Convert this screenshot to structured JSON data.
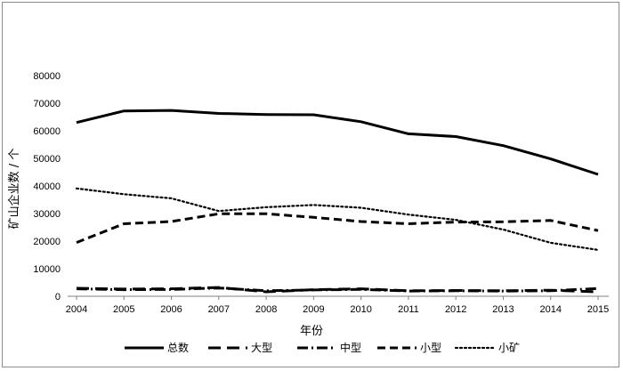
{
  "chart_data": {
    "type": "line",
    "title": "",
    "xlabel": "年份",
    "ylabel": "矿山企业数 / 个",
    "categories": [
      "2004",
      "2005",
      "2006",
      "2007",
      "2008",
      "2009",
      "2010",
      "2011",
      "2012",
      "2013",
      "2014",
      "2015"
    ],
    "y_ticks": [
      "0",
      "10000",
      "20000",
      "30000",
      "40000",
      "50000",
      "60000",
      "70000",
      "80000"
    ],
    "ylim": [
      0,
      80000
    ],
    "grid": false,
    "legend_position": "bottom",
    "series": [
      {
        "name": "总数",
        "style": "solid",
        "values": [
          63000,
          67200,
          67400,
          66300,
          65900,
          65800,
          63300,
          58900,
          57900,
          54600,
          49800,
          44200
        ]
      },
      {
        "name": "大型",
        "style": "long-dash",
        "values": [
          2900,
          2600,
          2700,
          3200,
          1600,
          2400,
          2700,
          2000,
          2100,
          2000,
          2200,
          1600
        ]
      },
      {
        "name": "中型",
        "style": "dash-dot",
        "values": [
          2700,
          2400,
          2500,
          3000,
          2000,
          2300,
          2500,
          1900,
          2000,
          1900,
          2000,
          2800
        ]
      },
      {
        "name": "小型",
        "style": "dash",
        "values": [
          19500,
          26300,
          27100,
          29900,
          29900,
          28600,
          27100,
          26300,
          26900,
          27000,
          27500,
          23800
        ]
      },
      {
        "name": "小矿",
        "style": "dot",
        "values": [
          39100,
          37000,
          35500,
          30900,
          32300,
          33100,
          32100,
          29600,
          27700,
          24200,
          19400,
          16800
        ]
      }
    ],
    "colors": {
      "line": "#000000",
      "axis": "#808080",
      "border": "#8c8c8c"
    }
  }
}
